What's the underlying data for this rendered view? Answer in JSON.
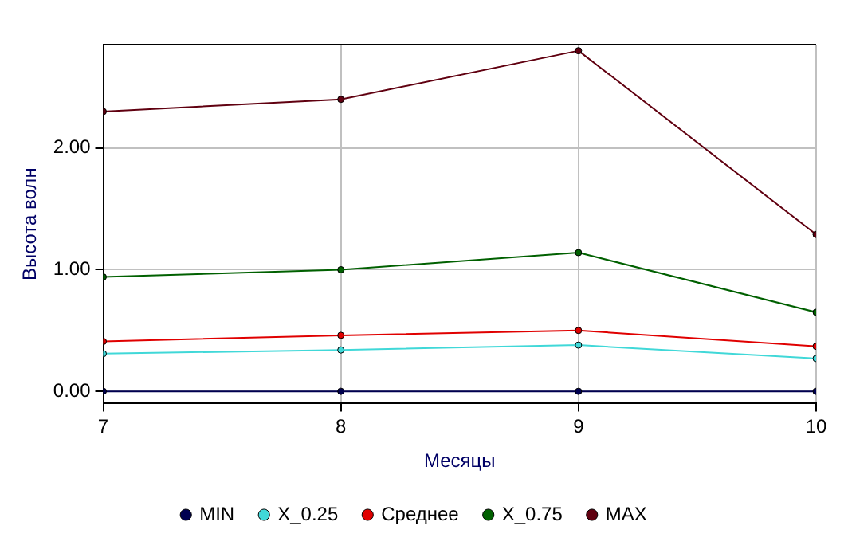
{
  "chart_data": {
    "type": "line",
    "xlabel": "Месяцы",
    "ylabel": "Высота волн",
    "x": [
      7,
      8,
      9,
      10
    ],
    "xlim": [
      7,
      10
    ],
    "xticks": [
      7,
      8,
      9,
      10
    ],
    "ylim": [
      -0.1,
      2.85
    ],
    "yticks": [
      {
        "value": 0,
        "label": "0.00"
      },
      {
        "value": 1,
        "label": "1.00"
      },
      {
        "value": 2,
        "label": "2.00"
      }
    ],
    "grid": true,
    "legend": "bottom",
    "marker": "circle",
    "line_style": "solid",
    "series": [
      {
        "name": "MIN",
        "color": "#000050",
        "values": [
          0,
          0,
          0,
          0
        ]
      },
      {
        "name": "X_0.25",
        "color": "#40d8d8",
        "values": [
          0.31,
          0.34,
          0.38,
          0.27
        ]
      },
      {
        "name": "Среднее",
        "color": "#e00000",
        "values": [
          0.41,
          0.46,
          0.5,
          0.37
        ]
      },
      {
        "name": "X_0.75",
        "color": "#006000",
        "values": [
          0.94,
          1.0,
          1.14,
          0.65
        ]
      },
      {
        "name": "MAX",
        "color": "#600010",
        "values": [
          2.3,
          2.4,
          2.8,
          1.29
        ]
      }
    ]
  }
}
